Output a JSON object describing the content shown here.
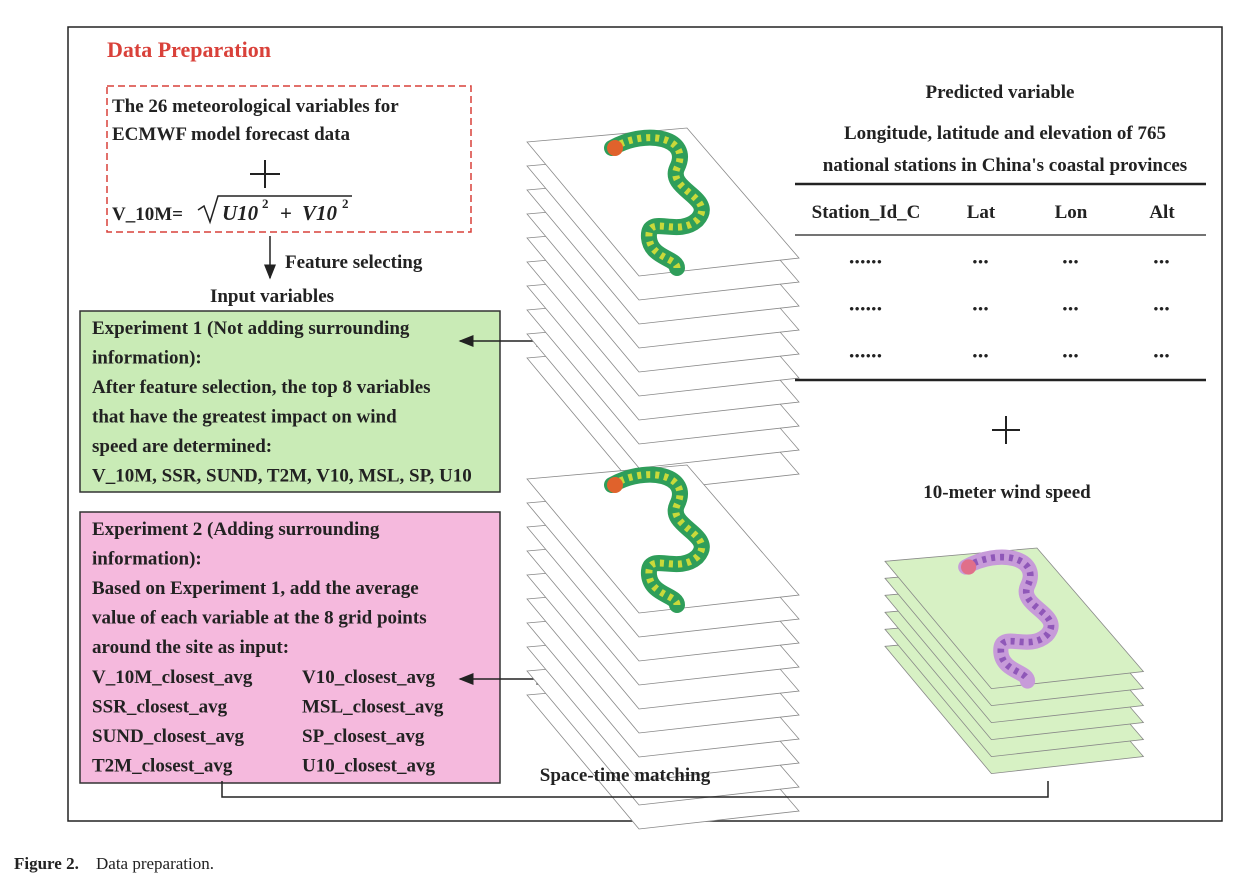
{
  "title": "Data Preparation",
  "source_box": {
    "lines": [
      "The 26 meteorological variables for",
      "ECMWF model forecast data"
    ],
    "formula_label": "V_10M=",
    "formula_terms": [
      "U10",
      "V10"
    ],
    "formula_power": "2",
    "formula_operator": "+"
  },
  "feature_selecting": "Feature selecting",
  "input_variables": "Input variables",
  "experiment1": {
    "lines": [
      "Experiment 1 (Not adding surrounding",
      "information):",
      "After feature selection, the top 8 variables",
      "that have the greatest impact on wind",
      "speed are determined:",
      "V_10M, SSR, SUND, T2M, V10, MSL, SP, U10"
    ]
  },
  "experiment2": {
    "lines": [
      "Experiment 2 (Adding surrounding",
      "information):",
      "Based on Experiment 1, add the average",
      "value of each variable at the 8 grid points",
      "around the site as input:"
    ],
    "variables": [
      [
        "V_10M_closest_avg",
        "V10_closest_avg"
      ],
      [
        "SSR_closest_avg",
        "MSL_closest_avg"
      ],
      [
        "SUND_closest_avg",
        "SP_closest_avg"
      ],
      [
        "T2M_closest_avg",
        "U10_closest_avg"
      ]
    ]
  },
  "predicted": {
    "title": "Predicted variable",
    "lines": [
      "Longitude, latitude and elevation of 765",
      "national stations in China's coastal provinces"
    ],
    "table": {
      "header": [
        "Station_Id_C",
        "Lat",
        "Lon",
        "Alt"
      ],
      "rows": [
        [
          "••••••",
          "•••",
          "•••",
          "•••"
        ],
        [
          "••••••",
          "•••",
          "•••",
          "•••"
        ],
        [
          "••••••",
          "•••",
          "•••",
          "•••"
        ]
      ]
    }
  },
  "wind_speed": "10-meter wind speed",
  "matching": "Space-time matching",
  "caption": {
    "label": "Figure 2.",
    "text": "Data preparation."
  }
}
